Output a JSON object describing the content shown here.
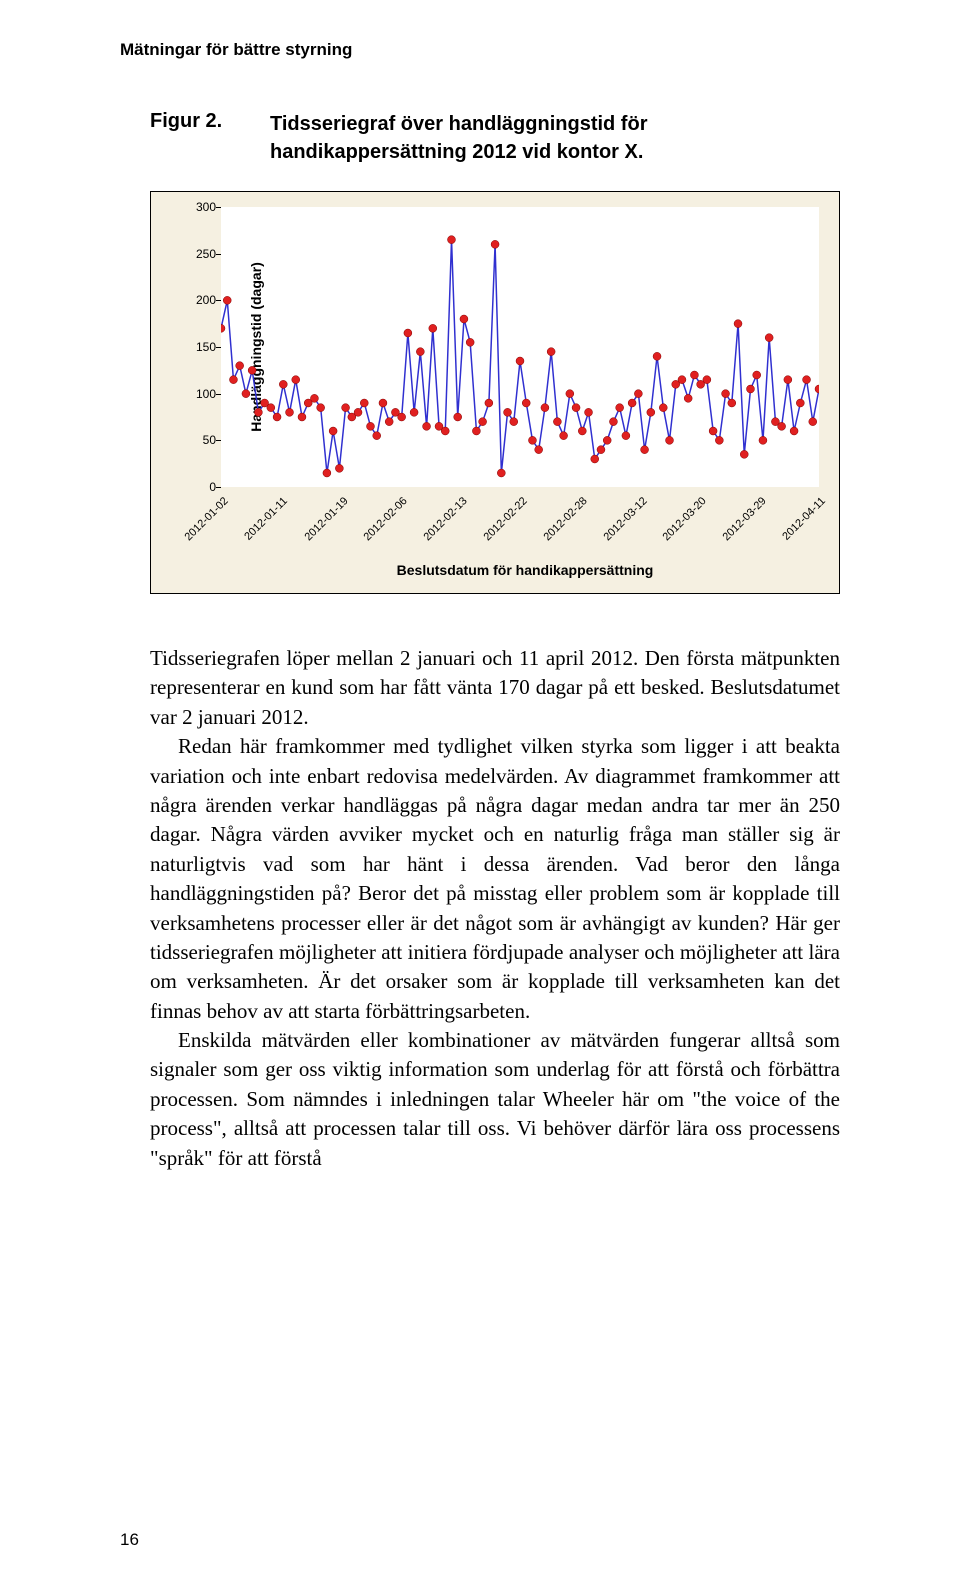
{
  "header": "Mätningar för bättre styrning",
  "figure": {
    "label": "Figur 2.",
    "text": "Tidsseriegraf över handläggningstid för handikappersättning 2012 vid kontor X."
  },
  "chart": {
    "type": "line-scatter",
    "y_label": "Handläggningstid (dagar)",
    "x_label": "Beslutsdatum för handikappersättning",
    "ylim": [
      0,
      300
    ],
    "y_ticks": [
      0,
      50,
      100,
      150,
      200,
      250,
      300
    ],
    "x_tick_labels": [
      "2012-01-02",
      "2012-01-11",
      "2012-01-19",
      "2012-02-06",
      "2012-02-13",
      "2012-02-22",
      "2012-02-28",
      "2012-03-12",
      "2012-03-20",
      "2012-03-29",
      "2012-04-11"
    ],
    "x_tick_positions": [
      0,
      10,
      20,
      30,
      40,
      50,
      60,
      70,
      80,
      90,
      100
    ],
    "line_color": "#3030d0",
    "marker_color": "#e02020",
    "marker_size": 4,
    "line_width": 1.5,
    "background_color": "#ffffff",
    "panel_color": "#f5f0e1",
    "values": [
      170,
      200,
      115,
      130,
      100,
      125,
      80,
      90,
      85,
      75,
      110,
      80,
      115,
      75,
      90,
      95,
      85,
      15,
      60,
      20,
      85,
      75,
      80,
      90,
      65,
      55,
      90,
      70,
      80,
      75,
      165,
      80,
      145,
      65,
      170,
      65,
      60,
      265,
      75,
      180,
      155,
      60,
      70,
      90,
      260,
      15,
      80,
      70,
      135,
      90,
      50,
      40,
      85,
      145,
      70,
      55,
      100,
      85,
      60,
      80,
      30,
      40,
      50,
      70,
      85,
      55,
      90,
      100,
      40,
      80,
      140,
      85,
      50,
      110,
      115,
      95,
      120,
      110,
      115,
      60,
      50,
      100,
      90,
      175,
      35,
      105,
      120,
      50,
      160,
      70,
      65,
      115,
      60,
      90,
      115,
      70,
      105
    ]
  },
  "body": {
    "p1": "Tidsseriegrafen löper mellan 2 januari och 11 april 2012. Den första mätpunkten representerar en kund som har fått vänta 170 dagar på ett besked. Beslutsdatumet var 2 januari 2012.",
    "p2": "Redan här framkommer med tydlighet vilken styrka som ligger i att beakta variation och inte enbart redovisa medelvärden. Av diagrammet framkommer att några ärenden verkar handläggas på några dagar medan andra tar mer än 250 dagar. Några värden avviker mycket och en naturlig fråga man ställer sig är naturligtvis vad som har hänt i dessa ärenden. Vad beror den långa handläggningstiden på? Beror det på misstag eller problem som är kopplade till verksamhetens processer eller är det något som är avhängigt av kunden? Här ger tidsseriegrafen möjligheter att initiera fördjupade analyser och möjligheter att lära om verksamheten. Är det orsaker som är kopplade till verksamheten kan det finnas behov av att starta förbättringsarbeten.",
    "p3": "Enskilda mätvärden eller kombinationer av mätvärden fungerar alltså som signaler som ger oss viktig information som underlag för att förstå och förbättra processen. Som nämndes i inledningen talar Wheeler här om \"the voice of the process\", alltså att processen talar till oss. Vi behöver därför lära oss processens \"språk\" för att förstå"
  },
  "page_number": "16"
}
